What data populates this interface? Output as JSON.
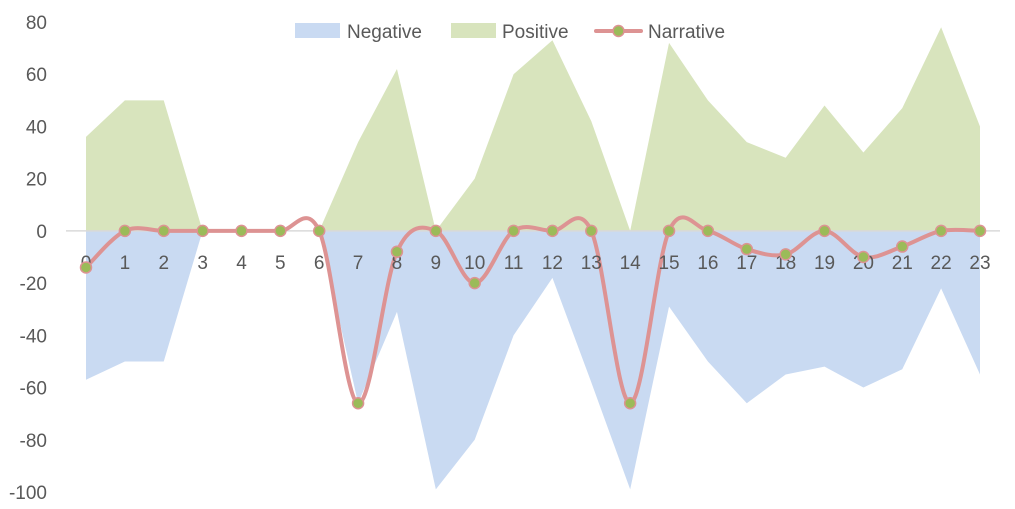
{
  "chart_data": {
    "type": "area",
    "title": "",
    "xlabel": "",
    "ylabel": "",
    "x": [
      0,
      1,
      2,
      3,
      4,
      5,
      6,
      7,
      8,
      9,
      10,
      11,
      12,
      13,
      14,
      15,
      16,
      17,
      18,
      19,
      20,
      21,
      22,
      23
    ],
    "ylim": [
      -100,
      80
    ],
    "yticks": [
      80,
      60,
      40,
      20,
      0,
      -20,
      -40,
      -60,
      -80,
      -100
    ],
    "grid": false,
    "legend_position": "top",
    "series": [
      {
        "name": "Negative",
        "kind": "area",
        "color": "#c9daf2",
        "values": [
          -57,
          -50,
          -50,
          0,
          0,
          0,
          0,
          -66,
          -31,
          -99,
          -80,
          -40,
          -18,
          -58,
          -99,
          -29,
          -50,
          -66,
          -55,
          -52,
          -60,
          -53,
          -22,
          -55
        ]
      },
      {
        "name": "Positive",
        "kind": "area",
        "color": "#d8e4bd",
        "values": [
          36,
          50,
          50,
          0,
          0,
          0,
          0,
          34,
          62,
          0,
          20,
          60,
          73,
          42,
          0,
          72,
          50,
          34,
          28,
          48,
          30,
          47,
          78,
          40
        ]
      },
      {
        "name": "Narrative",
        "kind": "line",
        "color": "#dd9393",
        "marker_color": "#9bbb59",
        "values": [
          -14,
          0,
          0,
          0,
          0,
          0,
          0,
          -66,
          -8,
          0,
          -20,
          0,
          0,
          0,
          -66,
          0,
          0,
          -7,
          -9,
          0,
          -10,
          -6,
          0,
          0
        ]
      }
    ]
  }
}
